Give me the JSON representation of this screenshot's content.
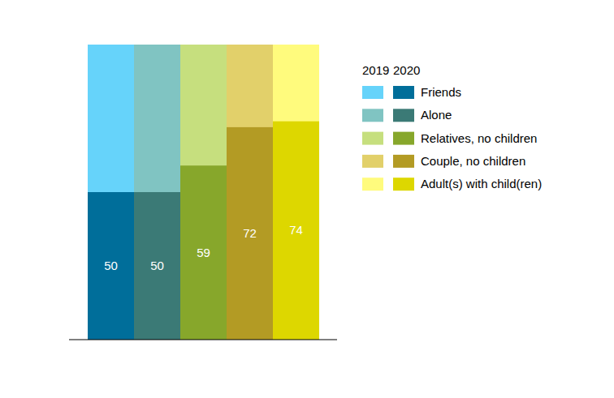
{
  "chart_data": {
    "type": "bar",
    "categories": [
      "Friends",
      "Alone",
      "Relatives, no children",
      "Couple, no children",
      "Adult(s) with child(ren)"
    ],
    "series": [
      {
        "name": "2019",
        "values": [
          100,
          100,
          100,
          100,
          100
        ],
        "colors": [
          "#66d3fa",
          "#80c4c2",
          "#c6df7e",
          "#e2d06a",
          "#fffb7d"
        ],
        "data_labels": false
      },
      {
        "name": "2020",
        "values": [
          50,
          50,
          59,
          72,
          74
        ],
        "colors": [
          "#006e9a",
          "#3b7a76",
          "#87a72b",
          "#b39b24",
          "#ddd700"
        ],
        "data_labels": true
      }
    ],
    "ylim": [
      0,
      100
    ],
    "tick_labels": false,
    "grid": false,
    "stacked": false
  }
}
